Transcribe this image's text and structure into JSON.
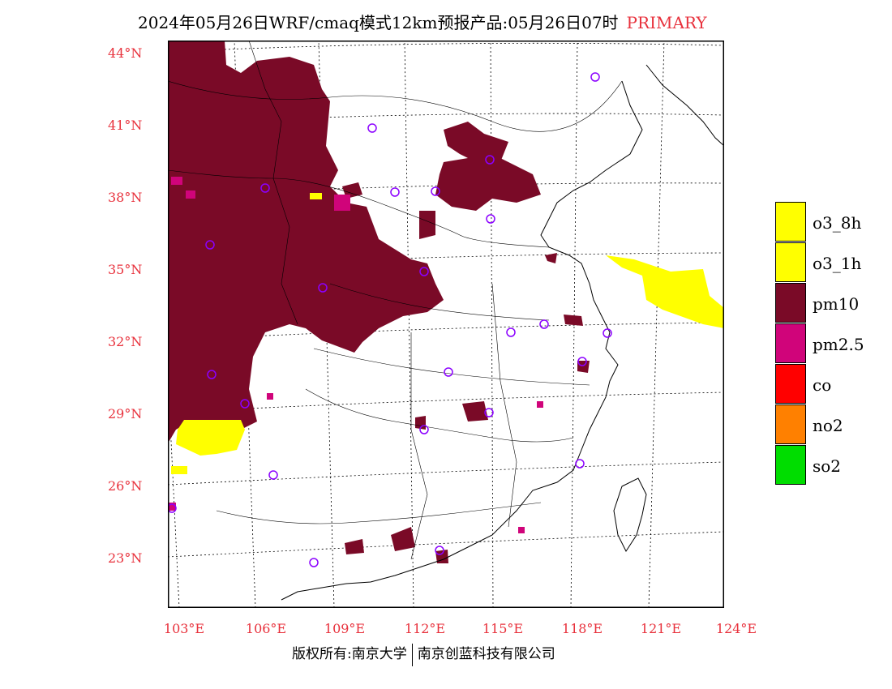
{
  "title": {
    "main": "2024年05月26日WRF/cmaq模式12km预报产品:05月26日07时",
    "tag": "PRIMARY"
  },
  "axes": {
    "lat_labels": [
      "44°N",
      "41°N",
      "38°N",
      "35°N",
      "32°N",
      "29°N",
      "26°N",
      "23°N"
    ],
    "lon_labels": [
      "103°E",
      "106°E",
      "109°E",
      "112°E",
      "115°E",
      "118°E",
      "121°E",
      "124°E"
    ]
  },
  "legend": [
    {
      "label": "o3_8h",
      "color": "#ffff00"
    },
    {
      "label": "o3_1h",
      "color": "#ffff00"
    },
    {
      "label": "pm10",
      "color": "#7a0a27"
    },
    {
      "label": "pm2.5",
      "color": "#d0047a"
    },
    {
      "label": "co",
      "color": "#ff0000"
    },
    {
      "label": "no2",
      "color": "#ff8000"
    },
    {
      "label": "so2",
      "color": "#00dd00"
    }
  ],
  "colors": {
    "axis_label": "#e8313c",
    "station_marker": "#8b00ff",
    "pm10": "#7a0a27",
    "pm25": "#d0047a",
    "o3": "#ffff00"
  },
  "footer": {
    "left": "版权所有:南京大学",
    "right": "南京创蓝科技有限公司"
  }
}
